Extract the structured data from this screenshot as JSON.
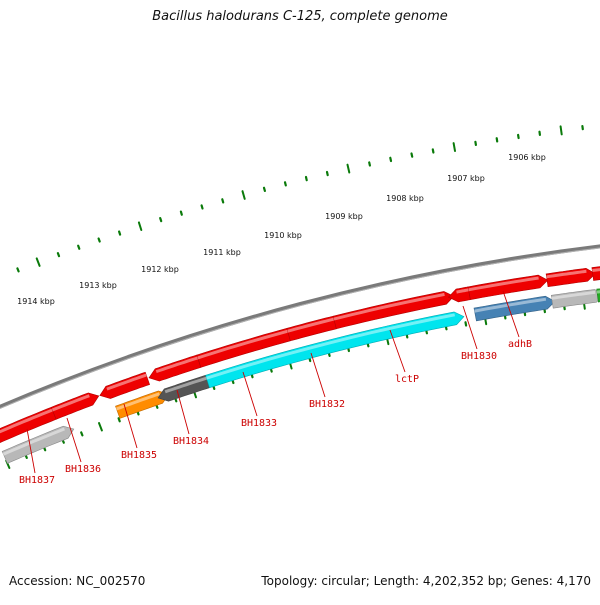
{
  "title": "Bacillus halodurans C-125, complete genome",
  "footer": {
    "accession": "Accession: NC_002570",
    "summary": "Topology: circular; Length: 4,202,352 bp; Genes: 4,170"
  },
  "ruler_labels": [
    "1906 kbp",
    "1907 kbp",
    "1908 kbp",
    "1909 kbp",
    "1910 kbp",
    "1911 kbp",
    "1912 kbp",
    "1913 kbp",
    "1914 kbp"
  ],
  "gene_labels": [
    "adhB",
    "BH1830",
    "lctP",
    "BH1832",
    "BH1833",
    "BH1834",
    "BH1835",
    "BH1836",
    "BH1837"
  ],
  "colors": {
    "forward_strand": "#ee0000",
    "backbone": "#7a7a7a",
    "tick": "#0a7a0a",
    "label": "#cc0000",
    "lctP": "#00e5ee",
    "BH1830": "#4682b4",
    "BH1835": "#ff8c00",
    "BH1834": "#555555",
    "grey_feature": "#b8b8b8",
    "green_feature": "#22aa22"
  }
}
